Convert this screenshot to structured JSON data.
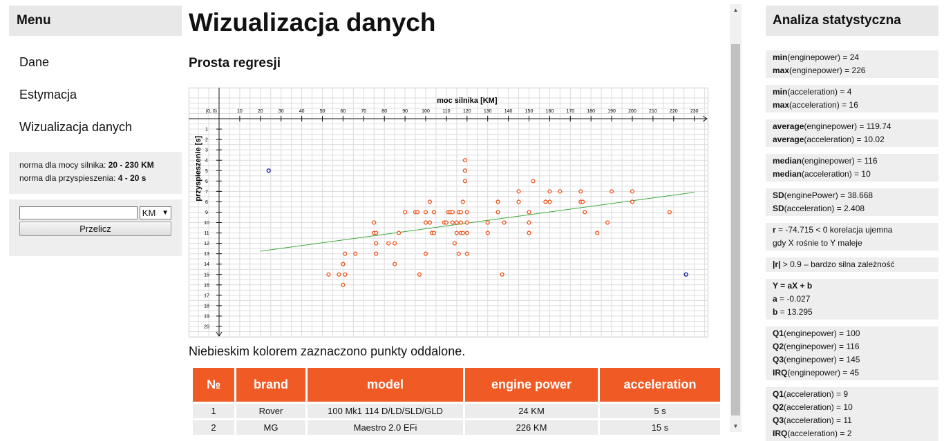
{
  "menu": {
    "title": "Menu",
    "items": [
      "Dane",
      "Estymacja",
      "Wizualizacja danych"
    ],
    "norm_power_label": "norma dla mocy silnika:",
    "norm_power_value": "20 - 230 KM",
    "norm_acc_label": "norma dla przyspieszenia:",
    "norm_acc_value": "4 - 20 s",
    "unit_selected": "KM",
    "input_value": "",
    "convert_label": "Przelicz"
  },
  "main": {
    "title": "Wizualizacja danych",
    "subtitle": "Prosta regresji",
    "note": "Niebieskim kolorem zaznaczono punkty oddalone."
  },
  "table": {
    "headers": [
      "№",
      "brand",
      "model",
      "engine power",
      "acceleration"
    ],
    "rows": [
      [
        "1",
        "Rover",
        "100 Mk1 114 D/LD/SLD/GLD",
        "24 KM",
        "5 s"
      ],
      [
        "2",
        "MG",
        "Maestro 2.0 EFi",
        "226 KM",
        "15 s"
      ]
    ]
  },
  "stats": {
    "title": "Analiza statystyczna",
    "blocks": [
      [
        [
          "min",
          "(enginepower) = 24"
        ],
        [
          "max",
          "(enginepower) = 226"
        ]
      ],
      [
        [
          "min",
          "(acceleration) = 4"
        ],
        [
          "max",
          "(acceleration) = 16"
        ]
      ],
      [
        [
          "average",
          "(enginepower) = 119.74"
        ],
        [
          "average",
          "(acceleration) = 10.02"
        ]
      ],
      [
        [
          "median",
          "(enginepower) = 116"
        ],
        [
          "median",
          "(acceleration) = 10"
        ]
      ],
      [
        [
          "SD",
          "(enginePower) = 38.668"
        ],
        [
          "SD",
          "(acceleration) = 2.408"
        ]
      ],
      [
        [
          "r",
          " = -74.715 < 0 korelacja ujemna"
        ],
        [
          "",
          "gdy X rośnie to Y maleje"
        ]
      ],
      [
        [
          "|r|",
          " > 0.9 – bardzo silna zależność"
        ]
      ],
      [
        [
          "Y = aX + b",
          ""
        ],
        [
          "a",
          " = -0.027"
        ],
        [
          "b",
          " = 13.295"
        ]
      ],
      [
        [
          "Q1",
          "(enginepower) = 100"
        ],
        [
          "Q2",
          "(enginepower) = 116"
        ],
        [
          "Q3",
          "(enginepower) = 145"
        ],
        [
          "IRQ",
          "(enginepower) = 45"
        ]
      ],
      [
        [
          "Q1",
          "(acceleration) = 9"
        ],
        [
          "Q2",
          "(acceleration) = 10"
        ],
        [
          "Q3",
          "(acceleration) = 11"
        ],
        [
          "IRQ",
          "(acceleration) = 2"
        ]
      ]
    ]
  },
  "chart_data": {
    "type": "scatter",
    "xlabel": "moc silnika [KM]",
    "ylabel": "przyspieszenie [s]",
    "origin_label": "(0, 0)",
    "xlim": [
      0,
      230
    ],
    "ylim": [
      0,
      20
    ],
    "x_ticks": [
      10,
      20,
      30,
      40,
      50,
      60,
      70,
      80,
      90,
      100,
      110,
      120,
      130,
      140,
      150,
      160,
      170,
      180,
      190,
      200,
      210,
      220,
      230
    ],
    "y_ticks": [
      1,
      2,
      3,
      4,
      5,
      6,
      7,
      8,
      9,
      10,
      11,
      12,
      13,
      14,
      15,
      16,
      17,
      18,
      19,
      20
    ],
    "y_inverted": true,
    "grid": true,
    "normal_color": "#f05a24",
    "outlier_color": "#1a1aa8",
    "regression_color": "#3aa83a",
    "regression": {
      "a": -0.027,
      "b": 13.295,
      "x_from": 20,
      "x_to": 230
    },
    "outliers": [
      [
        24,
        5
      ],
      [
        226,
        15
      ]
    ],
    "points": [
      [
        53,
        15
      ],
      [
        58,
        15
      ],
      [
        60,
        16
      ],
      [
        60,
        14
      ],
      [
        60,
        14
      ],
      [
        61,
        13
      ],
      [
        61,
        15
      ],
      [
        66,
        13
      ],
      [
        75,
        10
      ],
      [
        75,
        11
      ],
      [
        76,
        11
      ],
      [
        76,
        13
      ],
      [
        76,
        12
      ],
      [
        82,
        12
      ],
      [
        85,
        12
      ],
      [
        85,
        14
      ],
      [
        87,
        11
      ],
      [
        90,
        9
      ],
      [
        95,
        9
      ],
      [
        96,
        9
      ],
      [
        97,
        15
      ],
      [
        100,
        13
      ],
      [
        100,
        10
      ],
      [
        100,
        9
      ],
      [
        102,
        8
      ],
      [
        102,
        10
      ],
      [
        103,
        11
      ],
      [
        104,
        11
      ],
      [
        104,
        9
      ],
      [
        109,
        10
      ],
      [
        110,
        10
      ],
      [
        111,
        9
      ],
      [
        112,
        9
      ],
      [
        113,
        9
      ],
      [
        113,
        10
      ],
      [
        114,
        12
      ],
      [
        115,
        10
      ],
      [
        115,
        11
      ],
      [
        116,
        13
      ],
      [
        116,
        9
      ],
      [
        117,
        9
      ],
      [
        117,
        11
      ],
      [
        117,
        10
      ],
      [
        118,
        8
      ],
      [
        118,
        11
      ],
      [
        119,
        4
      ],
      [
        119,
        5
      ],
      [
        119,
        6
      ],
      [
        120,
        9
      ],
      [
        120,
        10
      ],
      [
        120,
        11
      ],
      [
        120,
        13
      ],
      [
        130,
        10
      ],
      [
        130,
        11
      ],
      [
        135,
        8
      ],
      [
        135,
        9
      ],
      [
        137,
        15
      ],
      [
        138,
        10
      ],
      [
        145,
        7
      ],
      [
        145,
        8
      ],
      [
        150,
        9
      ],
      [
        150,
        10
      ],
      [
        150,
        11
      ],
      [
        152,
        6
      ],
      [
        158,
        8
      ],
      [
        160,
        7
      ],
      [
        160,
        8
      ],
      [
        165,
        7
      ],
      [
        175,
        7
      ],
      [
        175,
        8
      ],
      [
        176,
        8
      ],
      [
        177,
        9
      ],
      [
        183,
        11
      ],
      [
        188,
        10
      ],
      [
        190,
        7
      ],
      [
        200,
        7
      ],
      [
        200,
        8
      ],
      [
        218,
        9
      ]
    ]
  }
}
